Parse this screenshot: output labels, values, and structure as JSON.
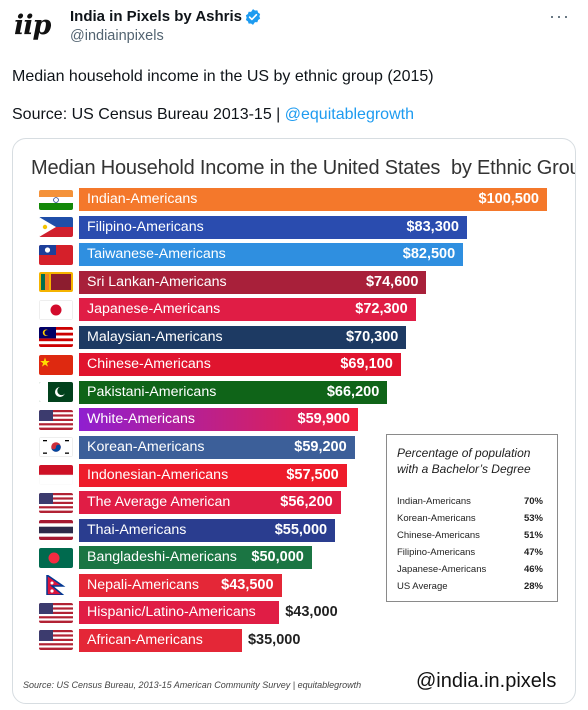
{
  "tweet": {
    "avatar_text": "iip",
    "author_name": "India in Pixels by Ashris",
    "handle": "@indiainpixels",
    "more_icon": "more-icon",
    "verified_icon": "verified-badge-icon",
    "text": "Median household income in the US by ethnic group (2015)",
    "source_prefix": "Source: US Census Bureau 2013-15 | ",
    "source_link": "@equitablegrowth"
  },
  "chart_data": {
    "type": "bar",
    "orientation": "horizontal",
    "title": "Median Household Income in the United States  by Ethnic Group",
    "categories": [
      "Indian-Americans",
      "Filipino-Americans",
      "Taiwanese-Americans",
      "Sri Lankan-Americans",
      "Japanese-Americans",
      "Malaysian-Americans",
      "Chinese-Americans",
      "Pakistani-Americans",
      "White-Americans",
      "Korean-Americans",
      "Indonesian-Americans",
      "The Average American",
      "Thai-Americans",
      "Bangladeshi-Americans",
      "Nepali-Americans",
      "Hispanic/Latino-Americans",
      "African-Americans"
    ],
    "values": [
      100500,
      83300,
      82500,
      74600,
      72300,
      70300,
      69100,
      66200,
      59900,
      59200,
      57500,
      56200,
      55000,
      50000,
      43500,
      43000,
      35000
    ],
    "value_labels": [
      "$100,500",
      "$83,300",
      "$82,500",
      "$74,600",
      "$72,300",
      "$70,300",
      "$69,100",
      "$66,200",
      "$59,900",
      "$59,200",
      "$57,500",
      "$56,200",
      "$55,000",
      "$50,000",
      "$43,500",
      "$43,000",
      "$35,000"
    ],
    "label_inside": [
      true,
      true,
      true,
      true,
      true,
      true,
      true,
      true,
      true,
      true,
      true,
      true,
      true,
      true,
      true,
      false,
      false
    ],
    "colors": [
      "#f4782b",
      "#2a4caf",
      "#2f8fe0",
      "#a8203a",
      "#e01d45",
      "#1d3a63",
      "#e0142e",
      "#0f6418",
      "#8f1fd0",
      "#3c5f99",
      "#ee1c2b",
      "#e01d45",
      "#2a3d8f",
      "#1b7543",
      "#e42737",
      "#e01d45",
      "#e42737"
    ],
    "gradient_to": [
      null,
      null,
      null,
      null,
      null,
      null,
      null,
      null,
      "#f0203a",
      null,
      null,
      null,
      null,
      null,
      null,
      null,
      null
    ],
    "flags": [
      "india-flag-icon",
      "philippines-flag-icon",
      "taiwan-flag-icon",
      "sri-lanka-flag-icon",
      "japan-flag-icon",
      "malaysia-flag-icon",
      "china-flag-icon",
      "pakistan-flag-icon",
      "usa-flag-icon",
      "south-korea-flag-icon",
      "indonesia-flag-icon",
      "usa-flag-icon",
      "thailand-flag-icon",
      "bangladesh-flag-icon",
      "nepal-flag-icon",
      "usa-flag-icon",
      "usa-flag-icon"
    ],
    "xlim": [
      0,
      100500
    ],
    "grid": false,
    "legend": "none",
    "inset_table": {
      "title": "Percentage of population with a Bachelor’s Degree",
      "rows": [
        {
          "group": "Indian-Americans",
          "pct": "70%"
        },
        {
          "group": "Korean-Americans",
          "pct": "53%"
        },
        {
          "group": "Chinese-Americans",
          "pct": "51%"
        },
        {
          "group": "Filipino-Americans",
          "pct": "47%"
        },
        {
          "group": "Japanese-Americans",
          "pct": "46%"
        },
        {
          "group": "US Average",
          "pct": "28%"
        }
      ]
    },
    "footnote": "Source: US Census Bureau, 2013-15 American Community Survey | equitablegrowth",
    "watermark": "@india.in.pixels"
  }
}
